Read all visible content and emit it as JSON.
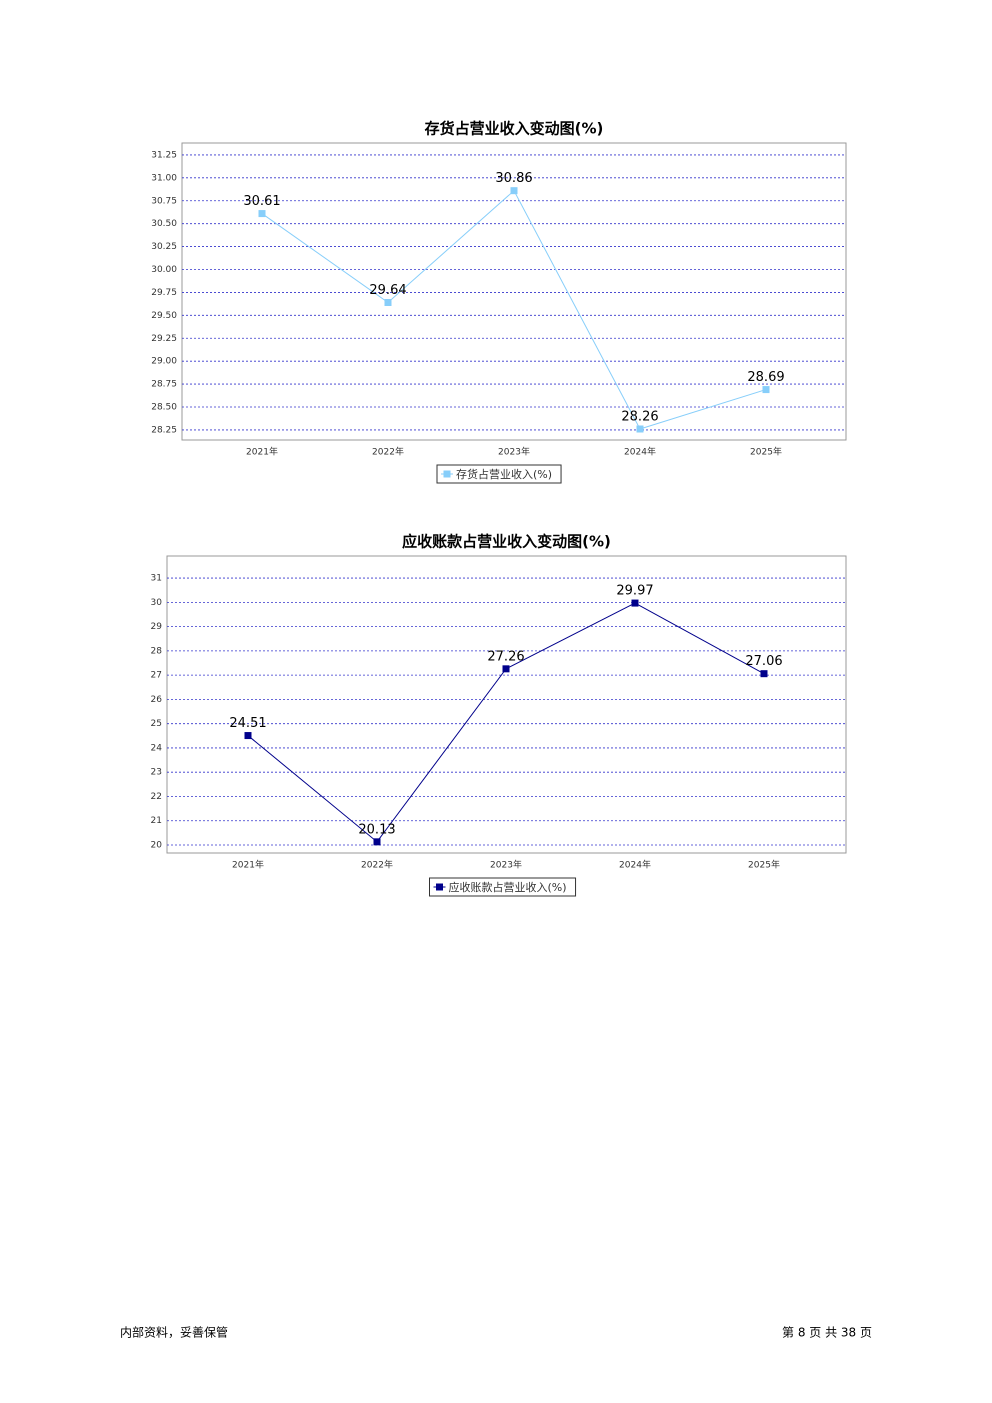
{
  "chart_data": [
    {
      "type": "line",
      "title": "存货占营业收入变动图(%)",
      "categories": [
        "2021年",
        "2022年",
        "2023年",
        "2024年",
        "2025年"
      ],
      "series": [
        {
          "name": "存货占营业收入(%)",
          "color": "#87cefa",
          "values": [
            30.61,
            29.64,
            30.86,
            28.26,
            28.69
          ]
        }
      ],
      "ylim": [
        28.14,
        31.38
      ],
      "yticks": [
        {
          "value": 28.25,
          "label": "28.25"
        },
        {
          "value": 28.5,
          "label": "28.50"
        },
        {
          "value": 28.75,
          "label": "28.75"
        },
        {
          "value": 29,
          "label": "29.00"
        },
        29.25,
        {
          "value": 29.5,
          "label": "29.50"
        },
        29.75,
        {
          "value": 30,
          "label": "30.00"
        },
        30.25,
        {
          "value": 30.5,
          "label": "30.50"
        },
        30.75,
        {
          "value": 31,
          "label": "31.00"
        },
        31.25
      ],
      "grid": true
    },
    {
      "type": "line",
      "title": "应收账款占营业收入变动图(%)",
      "categories": [
        "2021年",
        "2022年",
        "2023年",
        "2024年",
        "2025年"
      ],
      "series": [
        {
          "name": "应收账款占营业收入(%)",
          "color": "#00008b",
          "values": [
            24.51,
            20.13,
            27.26,
            29.97,
            27.06
          ]
        }
      ],
      "ylim": [
        19.67,
        31.91
      ],
      "yticks": [
        20,
        21,
        22,
        23,
        24,
        25,
        26,
        27,
        28,
        29,
        30,
        31
      ],
      "grid": true
    }
  ],
  "footer": {
    "left": "内部资料，妥善保管",
    "right": "第 8 页 共 38 页"
  }
}
